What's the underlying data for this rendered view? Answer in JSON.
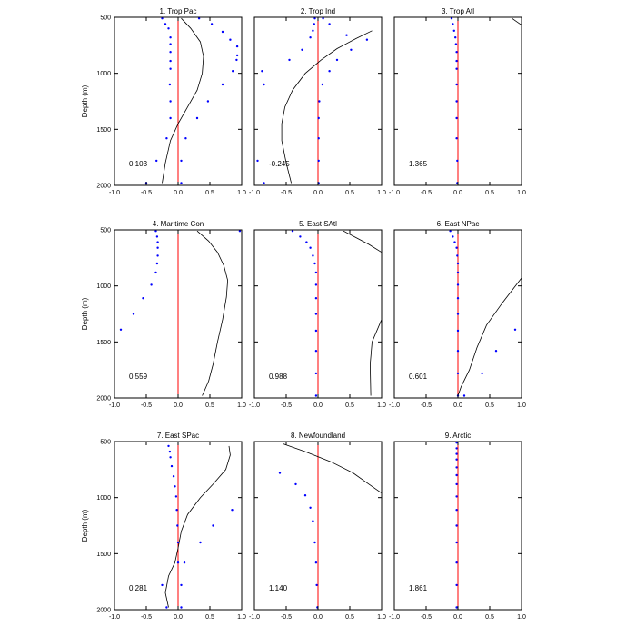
{
  "figure": {
    "colors": {
      "dots": "#0000ff",
      "zero_line": "#ff0000",
      "curve": "#000000",
      "frame": "#000000"
    }
  },
  "chart_data": {
    "type": "scatter",
    "shared": {
      "xlim": [
        -1.0,
        1.0
      ],
      "ylim": [
        500,
        2000
      ],
      "y_inverted": true,
      "xticks": [
        -1.0,
        -0.5,
        0.0,
        0.5,
        1.0
      ],
      "xticklabels": [
        "-1.0",
        "-0.5",
        "0.0",
        "0.5",
        "1.0"
      ],
      "yticks": [
        500,
        1000,
        1500,
        2000
      ],
      "yticklabels": [
        "500",
        "1000",
        "1500",
        "2000"
      ],
      "ylabel": "Depth (m)",
      "grid": false,
      "reference_line_x": 0.0
    },
    "panels": [
      {
        "title": "1. Trop Pac",
        "annotation": "0.103",
        "dots": [
          [
            -0.25,
            510
          ],
          [
            0.33,
            510
          ],
          [
            -0.2,
            560
          ],
          [
            0.53,
            560
          ],
          [
            -0.15,
            600
          ],
          [
            0.7,
            630
          ],
          [
            -0.12,
            680
          ],
          [
            0.82,
            700
          ],
          [
            -0.12,
            740
          ],
          [
            0.93,
            760
          ],
          [
            -0.12,
            810
          ],
          [
            0.93,
            840
          ],
          [
            -0.12,
            890
          ],
          [
            0.92,
            880
          ],
          [
            -0.12,
            960
          ],
          [
            0.86,
            980
          ],
          [
            -0.13,
            1100
          ],
          [
            0.7,
            1100
          ],
          [
            -0.12,
            1250
          ],
          [
            0.47,
            1250
          ],
          [
            -0.12,
            1400
          ],
          [
            0.3,
            1400
          ],
          [
            -0.18,
            1580
          ],
          [
            0.12,
            1580
          ],
          [
            -0.34,
            1780
          ],
          [
            0.05,
            1780
          ],
          [
            -0.5,
            1980
          ],
          [
            0.05,
            1980
          ]
        ],
        "curve": [
          [
            0.05,
            510
          ],
          [
            0.2,
            600
          ],
          [
            0.35,
            720
          ],
          [
            0.4,
            850
          ],
          [
            0.38,
            1000
          ],
          [
            0.3,
            1150
          ],
          [
            0.15,
            1300
          ],
          [
            0.0,
            1450
          ],
          [
            -0.12,
            1600
          ],
          [
            -0.2,
            1800
          ],
          [
            -0.25,
            1980
          ]
        ]
      },
      {
        "title": "2. Trop Ind",
        "annotation": "-0.245",
        "dots": [
          [
            -0.05,
            510
          ],
          [
            0.08,
            510
          ],
          [
            -0.06,
            560
          ],
          [
            0.18,
            560
          ],
          [
            -0.08,
            620
          ],
          [
            0.45,
            660
          ],
          [
            -0.12,
            680
          ],
          [
            0.77,
            700
          ],
          [
            -0.25,
            790
          ],
          [
            0.52,
            790
          ],
          [
            -0.45,
            880
          ],
          [
            0.3,
            880
          ],
          [
            -0.88,
            980
          ],
          [
            0.18,
            980
          ],
          [
            -0.85,
            1100
          ],
          [
            0.07,
            1100
          ],
          [
            0.02,
            1250
          ],
          [
            0.01,
            1400
          ],
          [
            0.01,
            1580
          ],
          [
            -0.95,
            1780
          ],
          [
            0.01,
            1780
          ],
          [
            -0.85,
            1980
          ],
          [
            0.01,
            1980
          ]
        ],
        "curve": [
          [
            0.85,
            620
          ],
          [
            0.6,
            690
          ],
          [
            0.3,
            780
          ],
          [
            0.05,
            880
          ],
          [
            -0.2,
            1000
          ],
          [
            -0.4,
            1150
          ],
          [
            -0.52,
            1300
          ],
          [
            -0.57,
            1450
          ],
          [
            -0.57,
            1600
          ],
          [
            -0.5,
            1800
          ],
          [
            -0.42,
            1980
          ]
        ]
      },
      {
        "title": "3. Trop Atl",
        "annotation": "1.365",
        "dots": [
          [
            -0.1,
            510
          ],
          [
            -0.08,
            560
          ],
          [
            -0.06,
            620
          ],
          [
            -0.04,
            680
          ],
          [
            -0.03,
            740
          ],
          [
            -0.02,
            810
          ],
          [
            -0.02,
            890
          ],
          [
            -0.02,
            960
          ],
          [
            -0.02,
            1100
          ],
          [
            -0.02,
            1250
          ],
          [
            -0.02,
            1400
          ],
          [
            -0.02,
            1580
          ],
          [
            -0.01,
            1780
          ],
          [
            -0.01,
            1980
          ]
        ],
        "curve": [
          [
            0.85,
            510
          ],
          [
            1.0,
            570
          ]
        ]
      },
      {
        "title": "4. Maritime Con",
        "annotation": "0.559",
        "dots": [
          [
            -0.35,
            510
          ],
          [
            0.97,
            510
          ],
          [
            -0.33,
            560
          ],
          [
            -0.32,
            610
          ],
          [
            -0.32,
            660
          ],
          [
            -0.32,
            730
          ],
          [
            -0.33,
            800
          ],
          [
            -0.35,
            880
          ],
          [
            -0.42,
            990
          ],
          [
            -0.55,
            1110
          ],
          [
            -0.7,
            1250
          ],
          [
            -0.9,
            1390
          ]
        ],
        "curve": [
          [
            0.3,
            510
          ],
          [
            0.48,
            600
          ],
          [
            0.62,
            700
          ],
          [
            0.72,
            820
          ],
          [
            0.78,
            950
          ],
          [
            0.76,
            1100
          ],
          [
            0.7,
            1300
          ],
          [
            0.62,
            1500
          ],
          [
            0.55,
            1700
          ],
          [
            0.48,
            1850
          ],
          [
            0.38,
            1980
          ]
        ]
      },
      {
        "title": "5. East SAtl",
        "annotation": "0.988",
        "dots": [
          [
            -0.4,
            510
          ],
          [
            -0.28,
            560
          ],
          [
            -0.18,
            610
          ],
          [
            -0.12,
            660
          ],
          [
            -0.08,
            730
          ],
          [
            -0.05,
            800
          ],
          [
            -0.03,
            880
          ],
          [
            -0.03,
            990
          ],
          [
            -0.03,
            1110
          ],
          [
            -0.03,
            1250
          ],
          [
            -0.03,
            1400
          ],
          [
            -0.03,
            1580
          ],
          [
            -0.03,
            1780
          ],
          [
            -0.03,
            1980
          ]
        ],
        "curve": [
          [
            0.4,
            510
          ],
          [
            0.6,
            570
          ],
          [
            0.8,
            630
          ],
          [
            1.0,
            700
          ]
        ],
        "curve2": [
          [
            1.0,
            1300
          ],
          [
            0.85,
            1500
          ],
          [
            0.82,
            1700
          ],
          [
            0.83,
            1980
          ]
        ]
      },
      {
        "title": "6. East NPac",
        "annotation": "0.601",
        "dots": [
          [
            -0.12,
            510
          ],
          [
            -0.08,
            560
          ],
          [
            -0.05,
            610
          ],
          [
            -0.02,
            660
          ],
          [
            -0.01,
            730
          ],
          [
            0.0,
            800
          ],
          [
            0.0,
            880
          ],
          [
            0.0,
            990
          ],
          [
            0.0,
            1110
          ],
          [
            0.0,
            1250
          ],
          [
            0.0,
            1400
          ],
          [
            0.9,
            1390
          ],
          [
            0.0,
            1580
          ],
          [
            0.6,
            1580
          ],
          [
            0.0,
            1780
          ],
          [
            0.38,
            1780
          ],
          [
            0.0,
            1980
          ],
          [
            0.1,
            1980
          ]
        ],
        "curve": [
          [
            1.0,
            930
          ],
          [
            0.7,
            1150
          ],
          [
            0.45,
            1350
          ],
          [
            0.3,
            1550
          ],
          [
            0.18,
            1750
          ],
          [
            0.05,
            1900
          ],
          [
            0.0,
            1980
          ]
        ]
      },
      {
        "title": "7. East SPac",
        "annotation": "0.281",
        "dots": [
          [
            -0.15,
            540
          ],
          [
            -0.13,
            590
          ],
          [
            -0.12,
            640
          ],
          [
            -0.1,
            720
          ],
          [
            -0.07,
            810
          ],
          [
            -0.05,
            900
          ],
          [
            -0.03,
            990
          ],
          [
            -0.02,
            1110
          ],
          [
            0.85,
            1110
          ],
          [
            -0.01,
            1250
          ],
          [
            0.55,
            1250
          ],
          [
            0.0,
            1400
          ],
          [
            0.35,
            1400
          ],
          [
            0.0,
            1580
          ],
          [
            0.1,
            1580
          ],
          [
            -0.25,
            1780
          ],
          [
            0.05,
            1780
          ],
          [
            -0.18,
            1980
          ],
          [
            0.05,
            1980
          ]
        ],
        "curve": [
          [
            0.8,
            540
          ],
          [
            0.82,
            620
          ],
          [
            0.75,
            750
          ],
          [
            0.55,
            880
          ],
          [
            0.35,
            1000
          ],
          [
            0.15,
            1150
          ],
          [
            0.05,
            1300
          ],
          [
            0.0,
            1450
          ],
          [
            -0.05,
            1580
          ],
          [
            -0.15,
            1700
          ],
          [
            -0.2,
            1850
          ],
          [
            -0.15,
            1980
          ]
        ]
      },
      {
        "title": "8. Newfoundland",
        "annotation": "1.140",
        "dots": [
          [
            -0.6,
            780
          ],
          [
            -0.35,
            880
          ],
          [
            -0.2,
            980
          ],
          [
            -0.12,
            1090
          ],
          [
            -0.08,
            1210
          ],
          [
            -0.05,
            1400
          ],
          [
            -0.03,
            1580
          ],
          [
            -0.02,
            1780
          ],
          [
            -0.01,
            1980
          ]
        ],
        "curve": [
          [
            -0.55,
            520
          ],
          [
            -0.2,
            590
          ],
          [
            0.2,
            680
          ],
          [
            0.55,
            780
          ],
          [
            0.8,
            880
          ],
          [
            1.0,
            960
          ]
        ]
      },
      {
        "title": "9. Arctic",
        "annotation": "1.861",
        "dots": [
          [
            -0.02,
            510
          ],
          [
            -0.02,
            560
          ],
          [
            -0.02,
            610
          ],
          [
            -0.02,
            660
          ],
          [
            -0.02,
            730
          ],
          [
            -0.02,
            800
          ],
          [
            -0.02,
            880
          ],
          [
            -0.02,
            990
          ],
          [
            -0.02,
            1110
          ],
          [
            -0.02,
            1250
          ],
          [
            -0.02,
            1400
          ],
          [
            -0.02,
            1580
          ],
          [
            -0.02,
            1780
          ],
          [
            -0.02,
            1980
          ]
        ],
        "curve": []
      }
    ]
  }
}
